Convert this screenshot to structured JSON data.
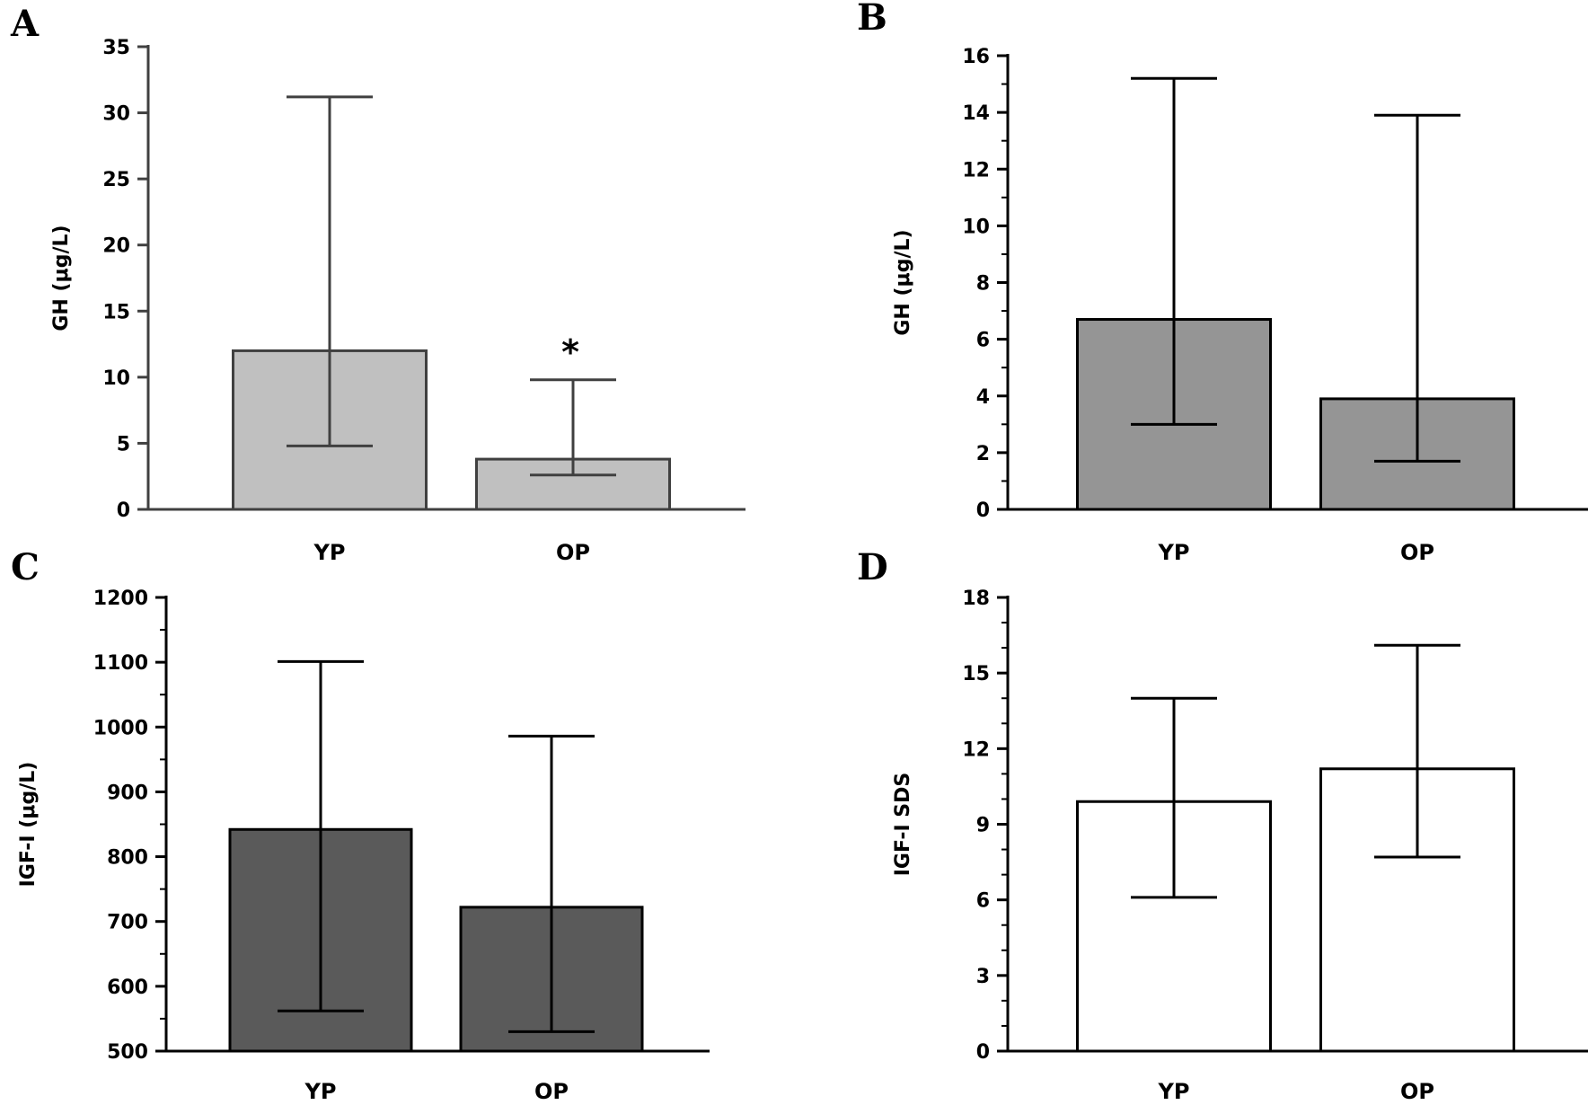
{
  "chart_data": [
    {
      "panel": "A",
      "type": "bar",
      "categories": [
        "YP",
        "OP"
      ],
      "values": [
        12,
        3.8
      ],
      "error_upper": [
        31.2,
        9.8
      ],
      "error_lower": [
        4.8,
        2.6
      ],
      "ylabel": "GH (μg/L)",
      "ylim": [
        0,
        35
      ],
      "yticks": [
        0,
        5,
        10,
        15,
        20,
        25,
        30,
        35
      ],
      "minor_ticks": false,
      "bar_color": "#c0c0c0",
      "stroke_color": "#404040",
      "annotations": [
        {
          "category": "OP",
          "text": "*"
        }
      ]
    },
    {
      "panel": "B",
      "type": "bar",
      "categories": [
        "YP",
        "OP"
      ],
      "values": [
        6.7,
        3.9
      ],
      "error_upper": [
        15.2,
        13.9
      ],
      "error_lower": [
        3.0,
        1.7
      ],
      "ylabel": "GH (μg/L)",
      "ylim": [
        0,
        16
      ],
      "yticks": [
        0,
        2,
        4,
        6,
        8,
        10,
        12,
        14,
        16
      ],
      "minor_ticks": true,
      "bar_color": "#959595",
      "stroke_color": "#000000",
      "annotations": []
    },
    {
      "panel": "C",
      "type": "bar",
      "categories": [
        "YP",
        "OP"
      ],
      "values": [
        842,
        722
      ],
      "error_upper": [
        1101,
        986
      ],
      "error_lower": [
        562,
        530
      ],
      "ylabel": "IGF-I (μg/L)",
      "ylim": [
        500,
        1200
      ],
      "yticks": [
        500,
        600,
        700,
        800,
        900,
        1000,
        1100,
        1200
      ],
      "minor_ticks": true,
      "bar_color": "#5a5a5a",
      "stroke_color": "#000000",
      "annotations": []
    },
    {
      "panel": "D",
      "type": "bar",
      "categories": [
        "YP",
        "OP"
      ],
      "values": [
        9.9,
        11.2
      ],
      "error_upper": [
        14.0,
        16.1
      ],
      "error_lower": [
        6.1,
        7.7
      ],
      "ylabel": "IGF-I SDS",
      "ylim": [
        0,
        18
      ],
      "yticks": [
        0,
        3,
        6,
        9,
        12,
        15,
        18
      ],
      "minor_ticks": true,
      "bar_color": "#ffffff",
      "stroke_color": "#000000",
      "annotations": []
    }
  ]
}
